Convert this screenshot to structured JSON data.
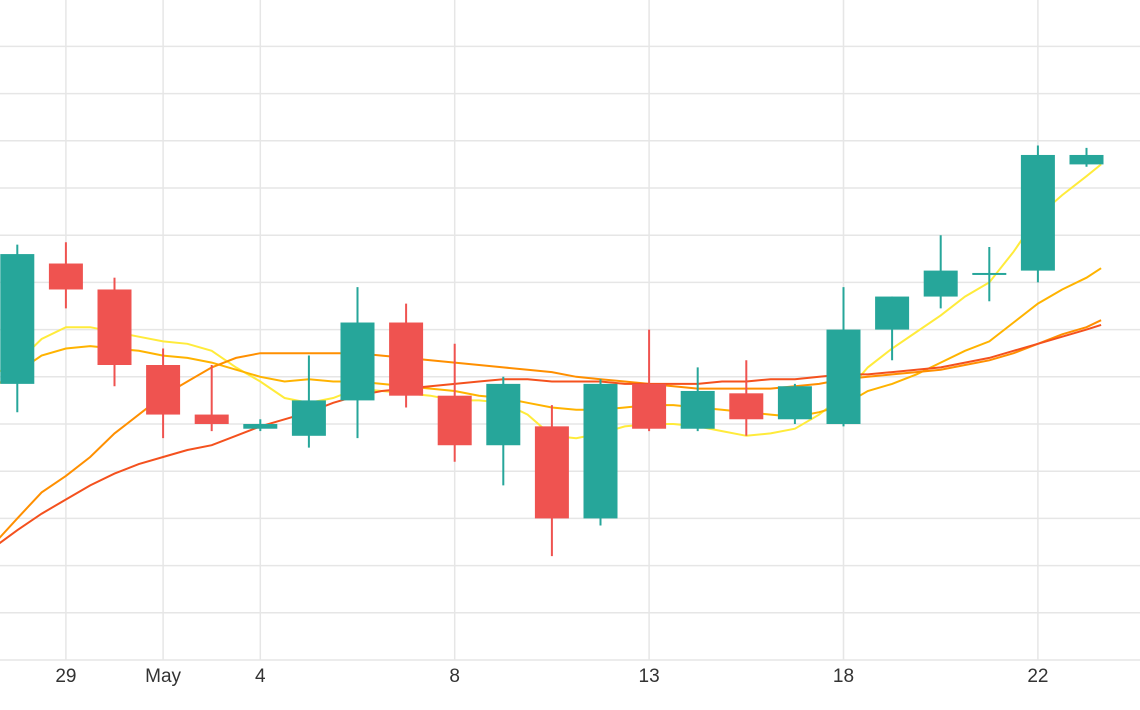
{
  "chart_data": {
    "type": "candlestick",
    "x_axis": {
      "ticks": [
        {
          "label": "29",
          "index": 1
        },
        {
          "label": "May",
          "index": 3
        },
        {
          "label": "4",
          "index": 5
        },
        {
          "label": "8",
          "index": 9
        },
        {
          "label": "13",
          "index": 13
        },
        {
          "label": "18",
          "index": 17
        },
        {
          "label": "22",
          "index": 21
        }
      ]
    },
    "y_axis": {
      "min": 0,
      "max": 14,
      "gridlines": [
        1,
        2,
        3,
        4,
        5,
        6,
        7,
        8,
        9,
        10,
        11,
        12,
        13,
        14
      ]
    },
    "grid": true,
    "colors": {
      "up": "#26a69a",
      "down": "#ef5350",
      "grid": "#e6e6e6",
      "ma_fast": "#ffeb3b",
      "ma_mid": "#ffb300",
      "ma_slow": "#ff8f00",
      "ma_slowest": "#f4511e"
    },
    "candles": [
      {
        "index": 0,
        "open": 5.85,
        "high": 8.8,
        "low": 5.25,
        "close": 8.6
      },
      {
        "index": 1,
        "open": 8.4,
        "high": 8.85,
        "low": 7.45,
        "close": 7.85
      },
      {
        "index": 2,
        "open": 7.85,
        "high": 8.1,
        "low": 5.8,
        "close": 6.25
      },
      {
        "index": 3,
        "open": 6.25,
        "high": 6.6,
        "low": 4.7,
        "close": 5.2
      },
      {
        "index": 4,
        "open": 5.2,
        "high": 6.25,
        "low": 4.85,
        "close": 5.0
      },
      {
        "index": 5,
        "open": 4.9,
        "high": 5.1,
        "low": 4.85,
        "close": 5.0
      },
      {
        "index": 6,
        "open": 4.75,
        "high": 6.45,
        "low": 4.5,
        "close": 5.5
      },
      {
        "index": 7,
        "open": 5.5,
        "high": 7.9,
        "low": 4.7,
        "close": 7.15
      },
      {
        "index": 8,
        "open": 7.15,
        "high": 7.55,
        "low": 5.35,
        "close": 5.6
      },
      {
        "index": 9,
        "open": 5.6,
        "high": 6.7,
        "low": 4.2,
        "close": 4.55
      },
      {
        "index": 10,
        "open": 4.55,
        "high": 6.0,
        "low": 3.7,
        "close": 5.85
      },
      {
        "index": 11,
        "open": 4.95,
        "high": 5.4,
        "low": 2.2,
        "close": 3.0
      },
      {
        "index": 12,
        "open": 3.0,
        "high": 5.95,
        "low": 2.85,
        "close": 5.85
      },
      {
        "index": 13,
        "open": 5.85,
        "high": 7.0,
        "low": 4.85,
        "close": 4.9
      },
      {
        "index": 14,
        "open": 4.9,
        "high": 6.2,
        "low": 4.85,
        "close": 5.7
      },
      {
        "index": 15,
        "open": 5.65,
        "high": 6.35,
        "low": 4.75,
        "close": 5.1
      },
      {
        "index": 16,
        "open": 5.1,
        "high": 5.85,
        "low": 5.0,
        "close": 5.8
      },
      {
        "index": 17,
        "open": 5.0,
        "high": 7.9,
        "low": 4.95,
        "close": 7.0
      },
      {
        "index": 18,
        "open": 7.0,
        "high": 7.7,
        "low": 6.35,
        "close": 7.7
      },
      {
        "index": 19,
        "open": 7.7,
        "high": 9.0,
        "low": 7.45,
        "close": 8.25
      },
      {
        "index": 20,
        "open": 8.2,
        "high": 8.75,
        "low": 7.6,
        "close": 8.2
      },
      {
        "index": 21,
        "open": 8.25,
        "high": 10.9,
        "low": 8.0,
        "close": 10.7
      },
      {
        "index": 22,
        "open": 10.5,
        "high": 10.85,
        "low": 10.45,
        "close": 10.7
      }
    ],
    "moving_averages": [
      {
        "key": "ma_fast",
        "points": [
          [
            -0.4,
            6.1
          ],
          [
            0.0,
            6.3
          ],
          [
            0.5,
            6.8
          ],
          [
            1.0,
            7.05
          ],
          [
            1.5,
            7.05
          ],
          [
            2.0,
            6.95
          ],
          [
            2.5,
            6.85
          ],
          [
            3.0,
            6.75
          ],
          [
            3.5,
            6.7
          ],
          [
            4.0,
            6.55
          ],
          [
            4.5,
            6.2
          ],
          [
            5.0,
            5.9
          ],
          [
            5.5,
            5.55
          ],
          [
            6.0,
            5.45
          ],
          [
            6.5,
            5.55
          ],
          [
            7.0,
            5.75
          ],
          [
            7.5,
            5.7
          ],
          [
            8.0,
            5.65
          ],
          [
            8.5,
            5.6
          ],
          [
            9.0,
            5.5
          ],
          [
            9.5,
            5.5
          ],
          [
            10.0,
            5.45
          ],
          [
            10.5,
            5.2
          ],
          [
            11.0,
            4.75
          ],
          [
            11.5,
            4.7
          ],
          [
            12.0,
            4.8
          ],
          [
            12.5,
            4.95
          ],
          [
            13.0,
            5.0
          ],
          [
            13.5,
            5.0
          ],
          [
            14.0,
            4.95
          ],
          [
            14.5,
            4.85
          ],
          [
            15.0,
            4.75
          ],
          [
            15.5,
            4.8
          ],
          [
            16.0,
            4.9
          ],
          [
            16.5,
            5.2
          ],
          [
            17.0,
            5.6
          ],
          [
            17.5,
            6.2
          ],
          [
            18.0,
            6.6
          ],
          [
            18.5,
            6.95
          ],
          [
            19.0,
            7.3
          ],
          [
            19.5,
            7.7
          ],
          [
            20.0,
            8.0
          ],
          [
            20.5,
            8.65
          ],
          [
            21.0,
            9.4
          ],
          [
            21.5,
            9.85
          ],
          [
            22.0,
            10.25
          ],
          [
            22.3,
            10.5
          ]
        ]
      },
      {
        "key": "ma_mid",
        "points": [
          [
            -0.4,
            5.85
          ],
          [
            0.0,
            6.1
          ],
          [
            0.5,
            6.45
          ],
          [
            1.0,
            6.6
          ],
          [
            1.5,
            6.65
          ],
          [
            2.0,
            6.6
          ],
          [
            2.5,
            6.55
          ],
          [
            3.0,
            6.45
          ],
          [
            3.5,
            6.4
          ],
          [
            4.0,
            6.3
          ],
          [
            4.5,
            6.15
          ],
          [
            5.0,
            6.0
          ],
          [
            5.5,
            5.9
          ],
          [
            6.0,
            5.95
          ],
          [
            6.5,
            5.9
          ],
          [
            7.0,
            5.9
          ],
          [
            7.5,
            5.85
          ],
          [
            8.0,
            5.8
          ],
          [
            8.5,
            5.75
          ],
          [
            9.0,
            5.7
          ],
          [
            9.5,
            5.6
          ],
          [
            10.0,
            5.55
          ],
          [
            10.5,
            5.45
          ],
          [
            11.0,
            5.35
          ],
          [
            11.5,
            5.3
          ],
          [
            12.0,
            5.3
          ],
          [
            12.5,
            5.35
          ],
          [
            13.0,
            5.4
          ],
          [
            13.5,
            5.4
          ],
          [
            14.0,
            5.35
          ],
          [
            14.5,
            5.3
          ],
          [
            15.0,
            5.25
          ],
          [
            15.5,
            5.2
          ],
          [
            16.0,
            5.15
          ],
          [
            16.5,
            5.25
          ],
          [
            17.0,
            5.4
          ],
          [
            17.5,
            5.7
          ],
          [
            18.0,
            5.85
          ],
          [
            18.5,
            6.05
          ],
          [
            19.0,
            6.3
          ],
          [
            19.5,
            6.55
          ],
          [
            20.0,
            6.75
          ],
          [
            20.5,
            7.15
          ],
          [
            21.0,
            7.55
          ],
          [
            21.5,
            7.85
          ],
          [
            22.0,
            8.1
          ],
          [
            22.3,
            8.3
          ]
        ]
      },
      {
        "key": "ma_slow",
        "points": [
          [
            -0.4,
            2.55
          ],
          [
            0.0,
            3.0
          ],
          [
            0.5,
            3.55
          ],
          [
            1.0,
            3.9
          ],
          [
            1.5,
            4.3
          ],
          [
            2.0,
            4.8
          ],
          [
            2.5,
            5.2
          ],
          [
            3.0,
            5.6
          ],
          [
            3.5,
            5.9
          ],
          [
            4.0,
            6.2
          ],
          [
            4.5,
            6.4
          ],
          [
            5.0,
            6.5
          ],
          [
            5.5,
            6.5
          ],
          [
            6.0,
            6.5
          ],
          [
            6.5,
            6.5
          ],
          [
            7.0,
            6.5
          ],
          [
            7.5,
            6.45
          ],
          [
            8.0,
            6.4
          ],
          [
            8.5,
            6.35
          ],
          [
            9.0,
            6.3
          ],
          [
            9.5,
            6.25
          ],
          [
            10.0,
            6.2
          ],
          [
            10.5,
            6.15
          ],
          [
            11.0,
            6.1
          ],
          [
            11.5,
            6.0
          ],
          [
            12.0,
            5.95
          ],
          [
            12.5,
            5.9
          ],
          [
            13.0,
            5.85
          ],
          [
            13.5,
            5.8
          ],
          [
            14.0,
            5.75
          ],
          [
            14.5,
            5.75
          ],
          [
            15.0,
            5.75
          ],
          [
            15.5,
            5.75
          ],
          [
            16.0,
            5.8
          ],
          [
            16.5,
            5.85
          ],
          [
            17.0,
            5.95
          ],
          [
            17.5,
            6.0
          ],
          [
            18.0,
            6.05
          ],
          [
            18.5,
            6.1
          ],
          [
            19.0,
            6.15
          ],
          [
            19.5,
            6.25
          ],
          [
            20.0,
            6.35
          ],
          [
            20.5,
            6.5
          ],
          [
            21.0,
            6.7
          ],
          [
            21.5,
            6.9
          ],
          [
            22.0,
            7.05
          ],
          [
            22.3,
            7.2
          ]
        ]
      },
      {
        "key": "ma_slowest",
        "points": [
          [
            -0.4,
            2.45
          ],
          [
            0.0,
            2.75
          ],
          [
            0.5,
            3.1
          ],
          [
            1.0,
            3.4
          ],
          [
            1.5,
            3.7
          ],
          [
            2.0,
            3.95
          ],
          [
            2.5,
            4.15
          ],
          [
            3.0,
            4.3
          ],
          [
            3.5,
            4.45
          ],
          [
            4.0,
            4.55
          ],
          [
            4.5,
            4.75
          ],
          [
            5.0,
            4.95
          ],
          [
            5.5,
            5.1
          ],
          [
            6.0,
            5.25
          ],
          [
            6.5,
            5.45
          ],
          [
            7.0,
            5.6
          ],
          [
            7.5,
            5.7
          ],
          [
            8.0,
            5.75
          ],
          [
            8.5,
            5.8
          ],
          [
            9.0,
            5.85
          ],
          [
            9.5,
            5.9
          ],
          [
            10.0,
            5.95
          ],
          [
            10.5,
            5.95
          ],
          [
            11.0,
            5.9
          ],
          [
            11.5,
            5.9
          ],
          [
            12.0,
            5.9
          ],
          [
            12.5,
            5.85
          ],
          [
            13.0,
            5.85
          ],
          [
            13.5,
            5.85
          ],
          [
            14.0,
            5.85
          ],
          [
            14.5,
            5.9
          ],
          [
            15.0,
            5.9
          ],
          [
            15.5,
            5.95
          ],
          [
            16.0,
            5.95
          ],
          [
            16.5,
            6.0
          ],
          [
            17.0,
            6.05
          ],
          [
            17.5,
            6.05
          ],
          [
            18.0,
            6.1
          ],
          [
            18.5,
            6.15
          ],
          [
            19.0,
            6.2
          ],
          [
            19.5,
            6.3
          ],
          [
            20.0,
            6.4
          ],
          [
            20.5,
            6.55
          ],
          [
            21.0,
            6.7
          ],
          [
            21.5,
            6.85
          ],
          [
            22.0,
            7.0
          ],
          [
            22.3,
            7.1
          ]
        ]
      }
    ]
  }
}
